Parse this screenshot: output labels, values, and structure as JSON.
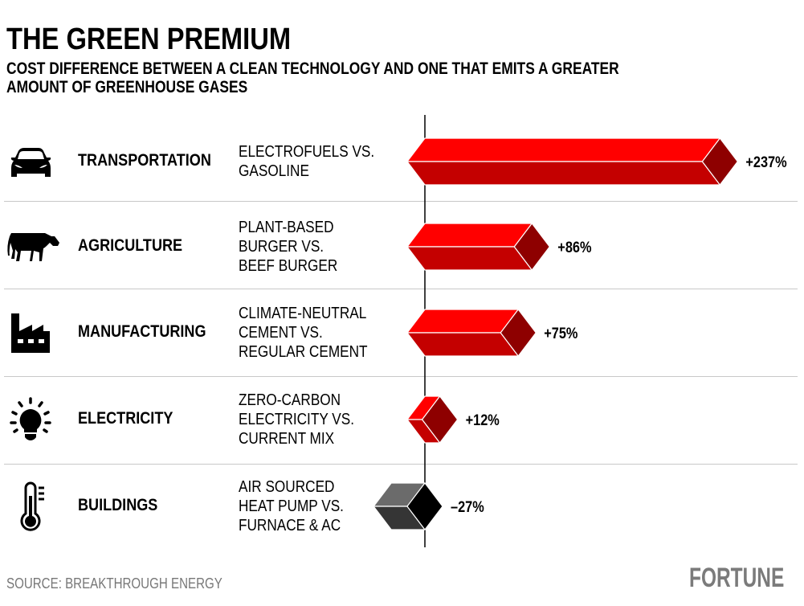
{
  "title": "THE GREEN PREMIUM",
  "subtitle_lines": [
    "COST DIFFERENCE BETWEEN A CLEAN TECHNOLOGY AND ONE THAT EMITS A GREATER",
    "AMOUNT OF GREENHOUSE GASES"
  ],
  "source": "SOURCE: BREAKTHROUGH ENERGY",
  "brand": "FORTUNE",
  "colors": {
    "positive_top": "#ff0000",
    "positive_bottom": "#c40000",
    "positive_end": "#8e0000",
    "negative_top": "#6b6b6b",
    "negative_bottom": "#353535",
    "negative_end": "#000000",
    "divider": "#c8c8c8"
  },
  "chart_data": {
    "type": "bar",
    "orientation": "horizontal",
    "title": "THE GREEN PREMIUM",
    "unit": "%",
    "baseline": 0,
    "grid": false,
    "categories": [
      "TRANSPORTATION",
      "AGRICULTURE",
      "MANUFACTURING",
      "ELECTRICITY",
      "BUILDINGS"
    ],
    "icons": [
      "car-icon",
      "cow-icon",
      "factory-icon",
      "lightbulb-icon",
      "thermometer-icon"
    ],
    "descriptions": [
      [
        "ELECTROFUELS VS.",
        "GASOLINE"
      ],
      [
        "PLANT-BASED",
        "BURGER VS.",
        "BEEF BURGER"
      ],
      [
        "CLIMATE-NEUTRAL",
        "CEMENT VS.",
        "REGULAR CEMENT"
      ],
      [
        "ZERO-CARBON",
        "ELECTRICITY VS.",
        "CURRENT MIX"
      ],
      [
        "AIR SOURCED",
        "HEAT PUMP VS.",
        "FURNACE & AC"
      ]
    ],
    "values": [
      237,
      86,
      75,
      12,
      -27
    ],
    "labels": [
      "+237%",
      "+86%",
      "+75%",
      "+12%",
      "–27%"
    ]
  }
}
